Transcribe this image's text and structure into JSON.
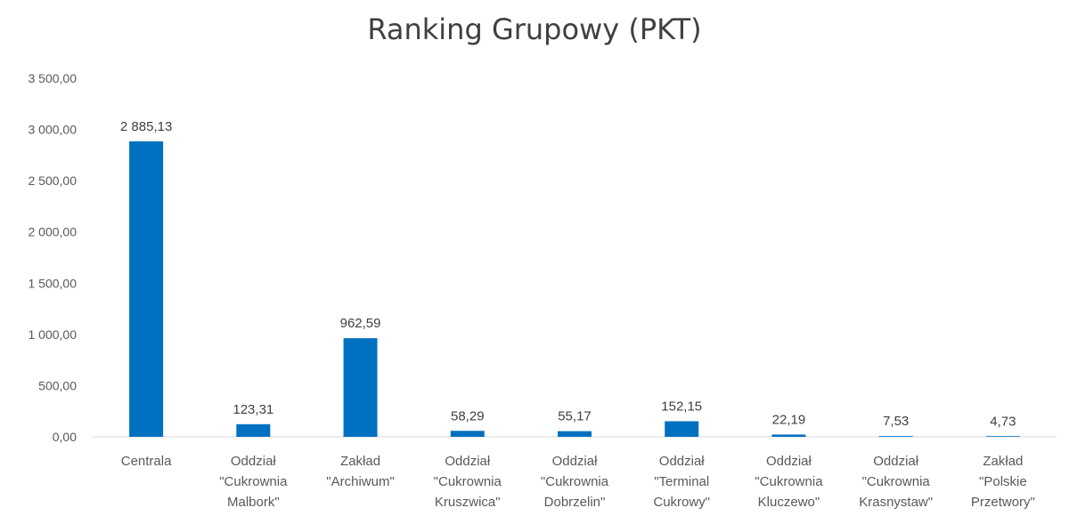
{
  "chart_data": {
    "type": "bar",
    "title": "Ranking Grupowy (PKT)",
    "xlabel": "",
    "ylabel": "",
    "ylim": [
      0,
      3500
    ],
    "yticks": [
      0,
      500,
      1000,
      1500,
      2000,
      2500,
      3000,
      3500
    ],
    "ytick_labels": [
      "0,00",
      "500,00",
      "1 000,00",
      "1 500,00",
      "2 000,00",
      "2 500,00",
      "3 000,00",
      "3 500,00"
    ],
    "grid": false,
    "legend": "none",
    "bar_color": "#0070C0",
    "categories": [
      [
        "Centrala"
      ],
      [
        "Oddział",
        "\"Cukrownia",
        "Malbork\""
      ],
      [
        "Zakład",
        "\"Archiwum\""
      ],
      [
        "Oddział",
        "\"Cukrownia",
        "Kruszwica\""
      ],
      [
        "Oddział",
        "\"Cukrownia",
        "Dobrzelin\""
      ],
      [
        "Oddział",
        "\"Terminal",
        "Cukrowy\""
      ],
      [
        "Oddział",
        "\"Cukrownia",
        "Kluczewo\""
      ],
      [
        "Oddział",
        "\"Cukrownia",
        "Krasnystaw\""
      ],
      [
        "Zakład",
        "\"Polskie",
        "Przetwory\""
      ]
    ],
    "values": [
      2885.13,
      123.31,
      962.59,
      58.29,
      55.17,
      152.15,
      22.19,
      7.53,
      4.73
    ],
    "data_labels": [
      "2 885,13",
      "123,31",
      "962,59",
      "58,29",
      "55,17",
      "152,15",
      "22,19",
      "7,53",
      "4,73"
    ]
  }
}
